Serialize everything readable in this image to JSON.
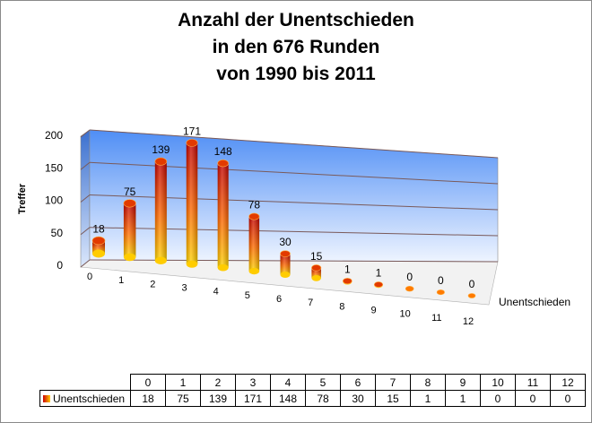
{
  "title": [
    "Anzahl der Unentschieden",
    "in den 676 Runden",
    "von 1990 bis 2011"
  ],
  "chart_data": {
    "type": "bar",
    "title": "Anzahl der Unentschieden in den 676 Runden von 1990 bis 2011",
    "categories": [
      "0",
      "1",
      "2",
      "3",
      "4",
      "5",
      "6",
      "7",
      "8",
      "9",
      "10",
      "11",
      "12"
    ],
    "series": [
      {
        "name": "Unentschieden",
        "values": [
          18,
          75,
          139,
          171,
          148,
          78,
          30,
          15,
          1,
          1,
          0,
          0,
          0
        ]
      }
    ],
    "ylabel": "Treffer",
    "xlabel": "",
    "ylim": [
      0,
      200
    ],
    "yticks": [
      0,
      50,
      100,
      150,
      200
    ],
    "grid": true,
    "legend": "data table",
    "style": "3d cylinder"
  },
  "table": {
    "header": [
      "0",
      "1",
      "2",
      "3",
      "4",
      "5",
      "6",
      "7",
      "8",
      "9",
      "10",
      "11",
      "12"
    ],
    "row_label": "Unentschieden",
    "values": [
      "18",
      "75",
      "139",
      "171",
      "148",
      "78",
      "30",
      "15",
      "1",
      "1",
      "0",
      "0",
      "0"
    ]
  },
  "colors": {
    "bar_top": "#cc0000",
    "bar_bottom": "#ffcc00",
    "wall_top": "#4f8ef5",
    "wall_bottom": "#eaf2ff"
  }
}
